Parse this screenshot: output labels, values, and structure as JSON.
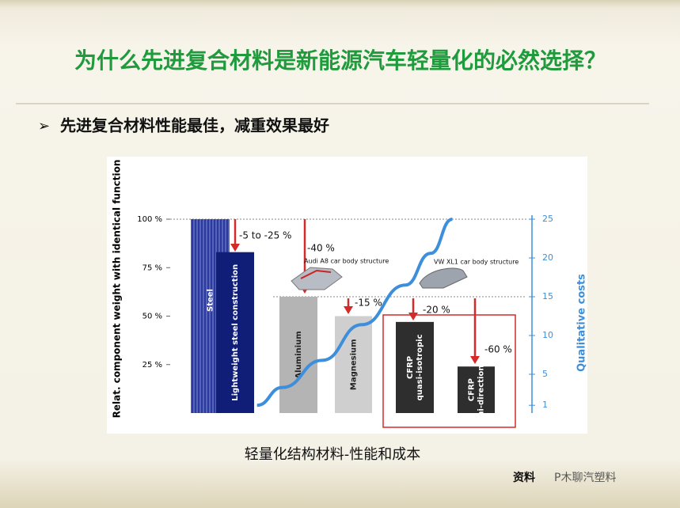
{
  "slide": {
    "title": "为什么先进复合材料是新能源汽车轻量化的必然选择？",
    "bullet": "先进复合材料性能最佳，减重效果最好",
    "caption": "轻量化结构材料-性能和成本",
    "source": "资料",
    "watermark": "P木聊汽塑料"
  },
  "chart_data": {
    "type": "bar",
    "ylabel": "Relat. component weight with identical function",
    "y2label": "Qualitative costs",
    "categories": [
      [
        "Steel"
      ],
      [
        "Lightweight steel construction"
      ],
      [
        "Aluminium"
      ],
      [
        "Magnesium"
      ],
      [
        "CFRP",
        "quasi-isotropic"
      ],
      [
        "CFRP",
        "uni-directional"
      ]
    ],
    "values": [
      100,
      83,
      60,
      50,
      47,
      24
    ],
    "colors": [
      "#2c3a9e",
      "#101e78",
      "#b4b4b4",
      "#cfcfcf",
      "#2e2e2e",
      "#2e2e2e"
    ],
    "ylim": [
      0,
      100
    ],
    "yticks": [
      {
        "value": 25,
        "label": "25 %"
      },
      {
        "value": 50,
        "label": "50 %"
      },
      {
        "value": 75,
        "label": "75 %"
      },
      {
        "value": 100,
        "label": "100 %"
      }
    ],
    "y2lim": [
      0,
      25
    ],
    "y2ticks": [
      1,
      5,
      10,
      15,
      20,
      25
    ],
    "cost_curve": {
      "color": "#3d8fdc",
      "axis": "y2",
      "xlim": [
        0,
        10
      ],
      "x": [
        2.4,
        3.1,
        4.2,
        5.3,
        6.5,
        7.2,
        7.8
      ],
      "values": [
        1,
        3.3,
        6.8,
        11.4,
        16.5,
        20.6,
        25
      ]
    },
    "annotations": [
      "-5 to -25 %",
      "-40 %",
      "-15 %",
      "-20 %",
      "-60 %",
      "Audi A8 car body structure",
      "VW XL1 car body structure"
    ]
  }
}
